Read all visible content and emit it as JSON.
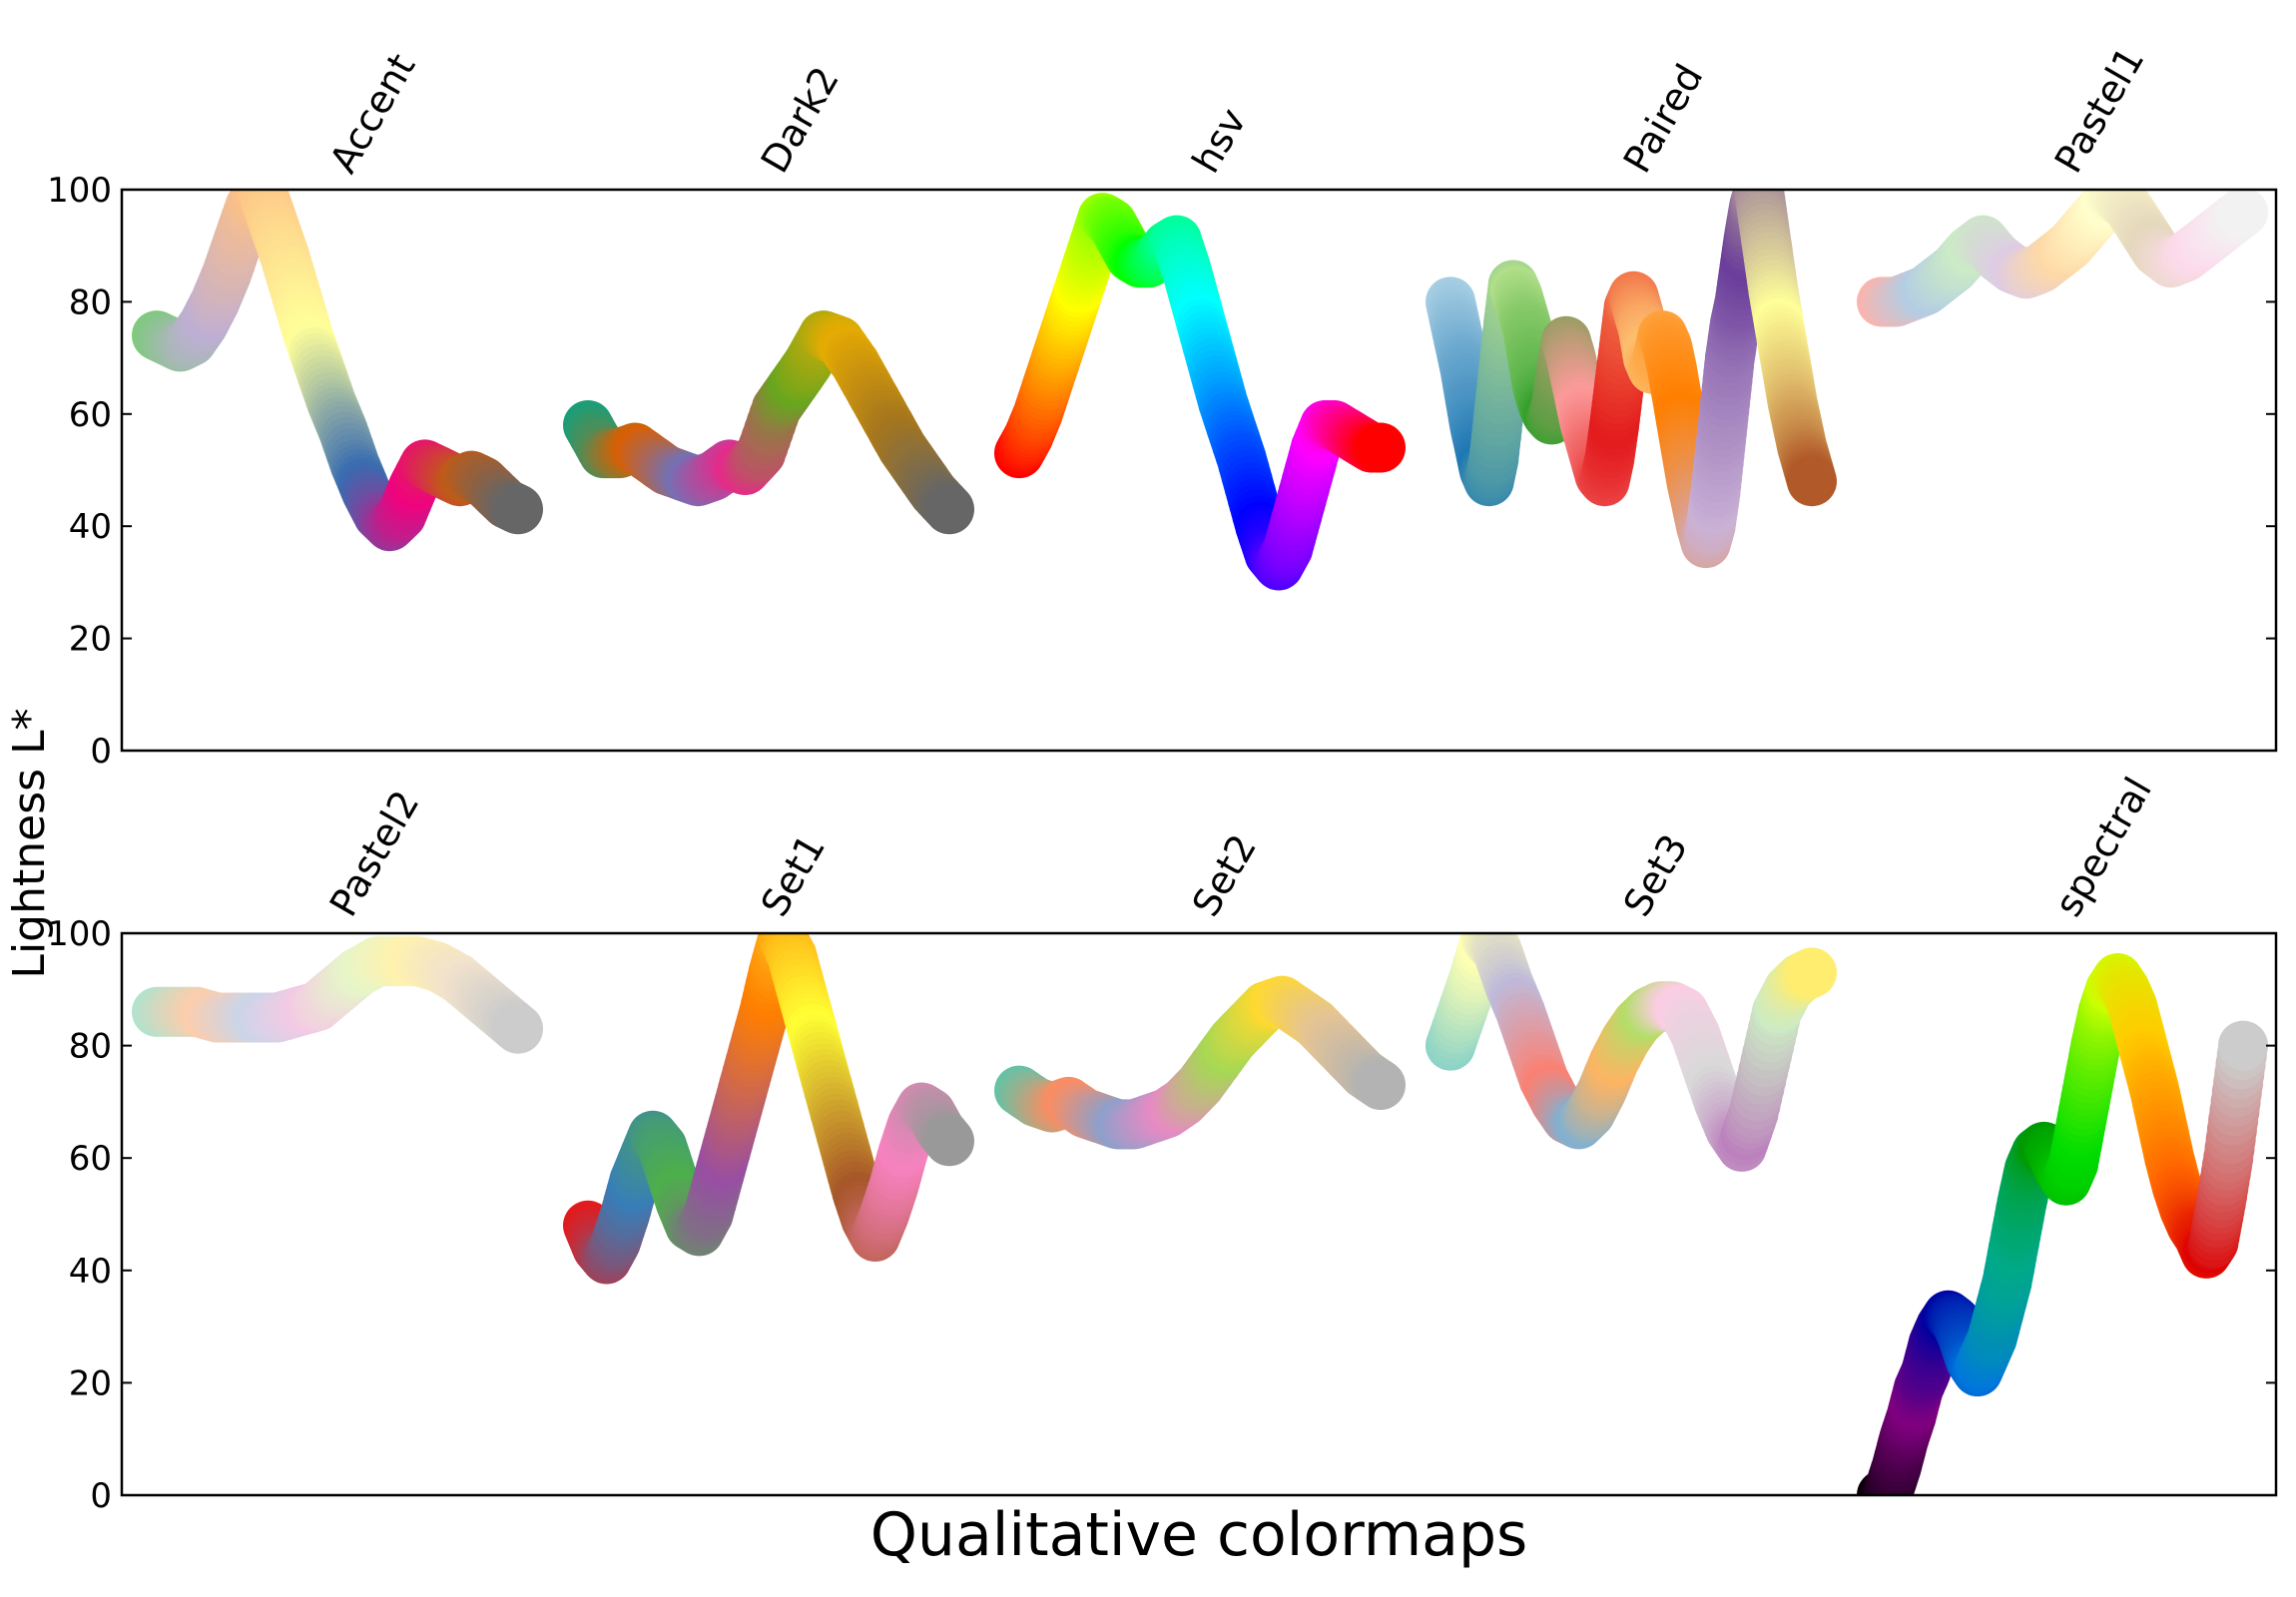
{
  "chart_data": {
    "type": "scatter",
    "xlabel": "Qualitative colormaps",
    "ylabel": "Lightness L*",
    "ylim": [
      0,
      100
    ],
    "yticks": [
      "0",
      "20",
      "40",
      "60",
      "80",
      "100"
    ],
    "grid": false,
    "panels": [
      {
        "colormaps": [
          {
            "name": "Accent",
            "color_stops": [
              "#7fc97f",
              "#beaed4",
              "#fdc086",
              "#ffff99",
              "#386cb0",
              "#f0027f",
              "#bf5b17",
              "#666666"
            ],
            "values": [
              74,
              73,
              72,
              73,
              76,
              80,
              85,
              91,
              97,
              100,
              94,
              88,
              81,
              74,
              68,
              62,
              57,
              51,
              46,
              42,
              40,
              42,
              47,
              51,
              50,
              49,
              48,
              49,
              48,
              46,
              44,
              43
            ]
          },
          {
            "name": "Dark2",
            "color_stops": [
              "#1b9e77",
              "#d95f02",
              "#7570b3",
              "#e7298a",
              "#66a61e",
              "#e6ab02",
              "#a6761d",
              "#666666"
            ],
            "values": [
              58,
              53,
              53,
              54,
              52,
              50,
              49,
              48,
              49,
              51,
              50,
              53,
              61,
              65,
              69,
              74,
              73,
              69,
              64,
              59,
              54,
              50,
              46,
              43
            ]
          },
          {
            "name": "hsv",
            "color_stops": [
              "#ff0000",
              "#ffff00",
              "#00ff00",
              "#00ffff",
              "#0000ff",
              "#ff00ff",
              "#ff0000"
            ],
            "values": [
              53,
              56,
              60,
              65,
              70,
              75,
              80,
              85,
              90,
              95,
              94,
              91,
              88,
              87,
              87,
              88,
              90,
              91,
              86,
              80,
              74,
              68,
              62,
              57,
              52,
              46,
              40,
              35,
              33,
              36,
              42,
              48,
              54,
              58,
              58,
              57,
              56,
              55,
              54,
              54
            ]
          },
          {
            "name": "Paired",
            "color_stops": [
              "#a6cee3",
              "#1f78b4",
              "#b2df8a",
              "#33a02c",
              "#fb9a99",
              "#e31a1c",
              "#fdbf6f",
              "#ff7f00",
              "#cab2d6",
              "#6a3d9a",
              "#ffff99",
              "#b15928"
            ],
            "values": [
              80,
              76,
              72,
              68,
              63,
              58,
              54,
              50,
              48,
              52,
              60,
              68,
              76,
              83,
              81,
              78,
              75,
              70,
              65,
              62,
              60,
              59,
              62,
              68,
              73,
              70,
              66,
              62,
              58,
              55,
              52,
              49,
              48,
              52,
              58,
              65,
              72,
              79,
              81,
              78,
              75,
              70,
              68,
              70,
              74,
              72,
              68,
              63,
              58,
              53,
              48,
              44,
              40,
              37,
              40,
              46,
              54,
              62,
              70,
              76,
              80,
              86,
              92,
              97,
              100,
              94,
              88,
              82,
              77,
              72,
              67,
              62,
              58,
              54,
              51,
              48
            ]
          },
          {
            "name": "Pastel1",
            "color_stops": [
              "#fbb4ae",
              "#b3cde3",
              "#ccebc5",
              "#decbe4",
              "#fed9a6",
              "#ffffcc",
              "#e5d8bd",
              "#fddaec",
              "#f2f2f2"
            ],
            "values": [
              80,
              80,
              81,
              82,
              84,
              86,
              89,
              91,
              88,
              86,
              85,
              86,
              88,
              90,
              93,
              96,
              99,
              97,
              93,
              89,
              87,
              88,
              90,
              92,
              94,
              96
            ]
          }
        ]
      },
      {
        "colormaps": [
          {
            "name": "Pastel2",
            "color_stops": [
              "#b3e2cd",
              "#fdcdac",
              "#cbd5e8",
              "#f4cae4",
              "#e6f5c9",
              "#fff2ae",
              "#f1e2cc",
              "#cccccc"
            ],
            "values": [
              86,
              86,
              86,
              85,
              85,
              85,
              85,
              86,
              87,
              90,
              93,
              95,
              95,
              95,
              94,
              92,
              89,
              86,
              83
            ]
          },
          {
            "name": "Set1",
            "color_stops": [
              "#e41a1c",
              "#377eb8",
              "#4daf4a",
              "#984ea3",
              "#ff7f00",
              "#ffff33",
              "#a65628",
              "#f781bf",
              "#999999"
            ],
            "values": [
              48,
              44,
              42,
              45,
              50,
              56,
              60,
              64,
              62,
              57,
              52,
              48,
              47,
              50,
              56,
              62,
              68,
              74,
              80,
              86,
              93,
              99,
              96,
              90,
              84,
              78,
              72,
              66,
              60,
              54,
              49,
              46,
              50,
              55,
              61,
              66,
              69,
              68,
              65,
              63
            ]
          },
          {
            "name": "Set2",
            "color_stops": [
              "#66c2a5",
              "#fc8d62",
              "#8da0cb",
              "#e78ac3",
              "#a6d854",
              "#ffd92f",
              "#e5c494",
              "#b3b3b3"
            ],
            "values": [
              72,
              70,
              69,
              70,
              68,
              67,
              66,
              66,
              67,
              68,
              70,
              73,
              77,
              81,
              84,
              87,
              88,
              86,
              84,
              81,
              78,
              75,
              73
            ]
          },
          {
            "name": "Set3",
            "color_stops": [
              "#8dd3c7",
              "#ffffb3",
              "#bebada",
              "#fb8072",
              "#80b1d3",
              "#fdb462",
              "#b3de69",
              "#fccde5",
              "#d9d9d9",
              "#bc80bd",
              "#ccebc5",
              "#ffed6f"
            ],
            "values": [
              80,
              86,
              92,
              99,
              97,
              91,
              86,
              80,
              74,
              70,
              67,
              66,
              68,
              72,
              77,
              81,
              84,
              86,
              87,
              87,
              86,
              82,
              76,
              70,
              65,
              62,
              68,
              77,
              86,
              90,
              92,
              93
            ]
          },
          {
            "name": "spectral",
            "color_stops": [
              "#000000",
              "#7f007f",
              "#0000a0",
              "#0077dd",
              "#00aa88",
              "#009900",
              "#00dd00",
              "#ccff00",
              "#ffcc00",
              "#ff6600",
              "#dd0000",
              "#cccccc"
            ],
            "values": [
              0,
              1,
              5,
              10,
              14,
              19,
              22,
              27,
              30,
              32,
              31,
              28,
              24,
              22,
              25,
              28,
              33,
              38,
              45,
              52,
              58,
              61,
              62,
              61,
              58,
              56,
              59,
              66,
              73,
              80,
              86,
              90,
              92,
              90,
              87,
              82,
              77,
              72,
              66,
              60,
              55,
              51,
              48,
              46,
              43,
              45,
              52,
              60,
              70,
              80
            ]
          }
        ]
      }
    ]
  }
}
